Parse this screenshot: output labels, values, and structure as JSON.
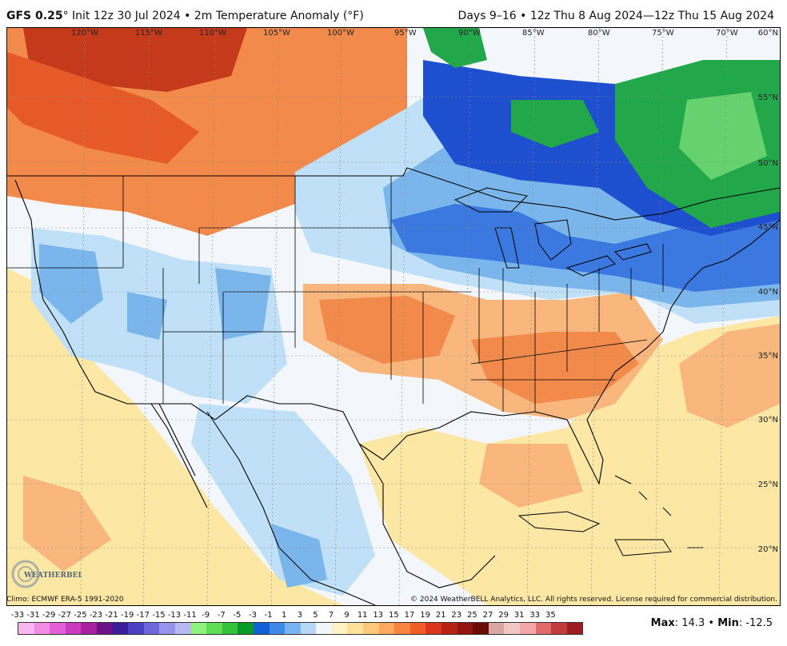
{
  "header": {
    "model": "GFS 0.25",
    "degree": "°",
    "title_rest": " Init 12z 30 Jul 2024 • 2m Temperature Anomaly (°F)",
    "valid": "Days 9–16 • 12z Thu 8 Aug 2024—12z Thu 15 Aug 2024"
  },
  "map": {
    "lon_ticks": [
      "120°W",
      "115°W",
      "110°W",
      "105°W",
      "100°W",
      "95°W",
      "90°W",
      "85°W",
      "80°W",
      "75°W",
      "70°W"
    ],
    "lat_ticks": [
      "60°N",
      "55°N",
      "50°N",
      "45°N",
      "40°N",
      "35°N",
      "30°N",
      "25°N",
      "20°N"
    ],
    "colors": {
      "very_warm": "#c43a1a",
      "warm": "#f28a4c",
      "mild_warm": "#f9b77d",
      "slight_warm": "#fde7a4",
      "neutral": "#f3f6fb",
      "slight_cool": "#bfe0f7",
      "cool": "#7ab6ec",
      "cold": "#3b78df",
      "colder": "#1d4fcf",
      "green_cold": "#22a84a",
      "green_light": "#66d26d"
    }
  },
  "footer": {
    "climo": "Climo: ECMWF ERA-5 1991-2020",
    "copyright": "© 2024 WeatherBELL Analytics, LLC. All rights reserved. License required for commercial distribution.",
    "logo_text": "WEATHERBELL"
  },
  "colorbar": {
    "labels": [
      "-33",
      "-31",
      "-29",
      "-27",
      "-25",
      "-23",
      "-21",
      "-19",
      "-17",
      "-15",
      "-13",
      "-11",
      "-9",
      "-7",
      "-5",
      "-3",
      "-1",
      "1",
      "3",
      "5",
      "7",
      "9",
      "11",
      "13",
      "15",
      "17",
      "19",
      "21",
      "23",
      "25",
      "27",
      "29",
      "31",
      "33",
      "35"
    ],
    "colors": [
      "#f9b6f0",
      "#f08ce5",
      "#e35fd5",
      "#c93bbf",
      "#a8209f",
      "#6d138a",
      "#3a1f9a",
      "#4b3fc4",
      "#6e68df",
      "#9694ea",
      "#b9b8f2",
      "#8ff27d",
      "#5fde55",
      "#33c33a",
      "#0a9a2a",
      "#1160d8",
      "#3e8ae9",
      "#78b4f0",
      "#b6d7f5",
      "#f2f6fb",
      "#fff3c6",
      "#fee29a",
      "#fdc879",
      "#fca95f",
      "#f8853f",
      "#ee5e26",
      "#d9391a",
      "#b72312",
      "#93150d",
      "#6a0d09",
      "#d9a6a3",
      "#efc7c7",
      "#f4a7a7",
      "#e06b6b",
      "#c23c3c",
      "#9c1e22"
    ]
  },
  "stats": {
    "max_label": "Max",
    "max_value": "14.3",
    "sep": " • ",
    "min_label": "Min",
    "min_value": "-12.5"
  }
}
